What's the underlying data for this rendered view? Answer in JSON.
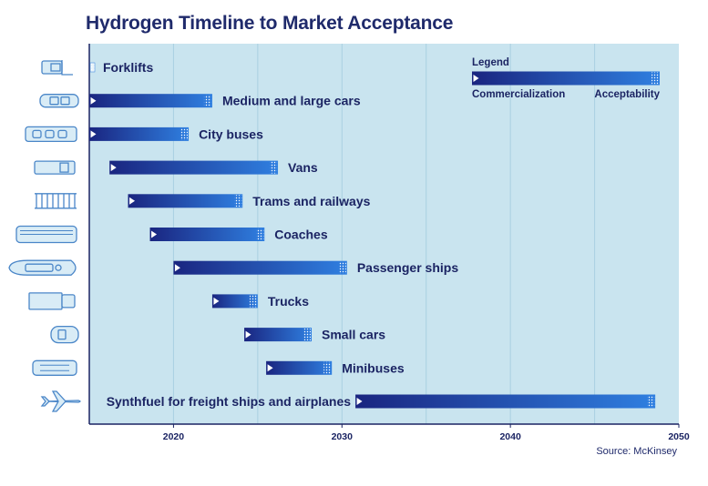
{
  "title": "Hydrogen Timeline to Market Acceptance",
  "source": "Source: McKinsey",
  "colors": {
    "plot_bg": "#c9e4ef",
    "grid": "#a9d0e2",
    "axis": "#1b2463",
    "bar_dark": "#1a2580",
    "bar_light": "#2f7fe0",
    "icon_stroke": "#4a86c8",
    "icon_fill": "#d9ecf6"
  },
  "legend": {
    "title": "Legend",
    "start_label": "Commercialization",
    "end_label": "Acceptability"
  },
  "chart_data": {
    "type": "bar",
    "orientation": "horizontal-range",
    "title": "Hydrogen Timeline to Market Acceptance",
    "xlim": [
      2015,
      2050
    ],
    "xticks": [
      2020,
      2030,
      2040,
      2050
    ],
    "grid": true,
    "legend_position": "top-right",
    "categories": [
      "Forklifts",
      "Medium and large cars",
      "City buses",
      "Vans",
      "Trams and railways",
      "Coaches",
      "Passenger ships",
      "Trucks",
      "Small cars",
      "Minibuses",
      "Synthfuel for freight ships and airplanes"
    ],
    "series": [
      {
        "name": "Commercialization",
        "values": [
          2015,
          2015,
          2015,
          2016.2,
          2017.3,
          2018.6,
          2020,
          2022.3,
          2024.2,
          2025.5,
          2030.8
        ]
      },
      {
        "name": "Acceptability",
        "values": [
          2015.3,
          2022.3,
          2020.9,
          2026.2,
          2024.1,
          2025.4,
          2030.3,
          2025,
          2028.2,
          2029.4,
          2048.6
        ]
      }
    ],
    "icons": [
      "forklift-icon",
      "car-icon",
      "city-bus-icon",
      "van-icon",
      "tram-icon",
      "coach-icon",
      "passenger-ship-icon",
      "truck-icon",
      "small-car-icon",
      "minibus-icon",
      "airplane-icon"
    ]
  }
}
